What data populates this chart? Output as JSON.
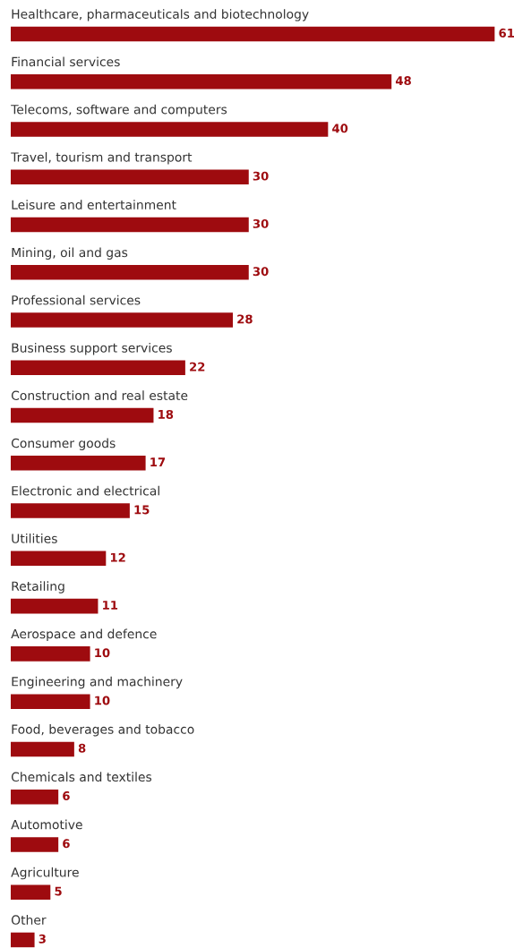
{
  "chart_data": {
    "type": "bar",
    "orientation": "horizontal",
    "categories": [
      "Healthcare, pharmaceuticals and biotechnology",
      "Financial services",
      "Telecoms, software and computers",
      "Travel, tourism and transport",
      "Leisure and entertainment",
      "Mining, oil and gas",
      "Professional services",
      "Business support services",
      "Construction and real estate",
      "Consumer goods",
      "Electronic and electrical",
      "Utilities",
      "Retailing",
      "Aerospace and defence",
      "Engineering and machinery",
      "Food, beverages and tobacco",
      "Chemicals and textiles",
      "Automotive",
      "Agriculture",
      "Other"
    ],
    "values": [
      61,
      48,
      40,
      30,
      30,
      30,
      28,
      22,
      18,
      17,
      15,
      12,
      11,
      10,
      10,
      8,
      6,
      6,
      5,
      3
    ],
    "color": "#9e0b0f",
    "data_labels": true
  }
}
